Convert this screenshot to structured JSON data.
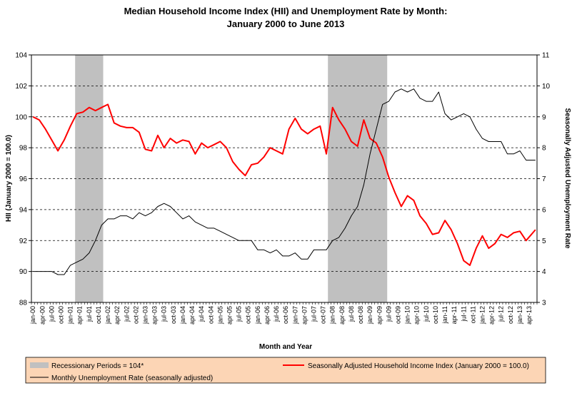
{
  "chart_data": {
    "type": "line",
    "title": "Median Household Income Index (HII) and Unemployment Rate by Month:",
    "subtitle": "January 2000 to June 2013",
    "xlabel": "Month and Year",
    "ylabel": "HII (January 2000 = 100.0)",
    "y2label": "Seasonally Adjusted Unemployment Rate",
    "ylim": [
      88,
      104
    ],
    "y2lim": [
      3,
      11
    ],
    "y_ticks": [
      "88",
      "90",
      "92",
      "94",
      "96",
      "98",
      "100",
      "102",
      "104"
    ],
    "y2_ticks": [
      "3",
      "4",
      "5",
      "6",
      "7",
      "8",
      "9",
      "10",
      "11"
    ],
    "x_start": "2000-01",
    "x_end": "2013-06",
    "x_tick_labels": [
      "jan-00",
      "apr-00",
      "jul-00",
      "oct-00",
      "jan-01",
      "apr-01",
      "jul-01",
      "oct-01",
      "jan-02",
      "apr-02",
      "jul-02",
      "oct-02",
      "jan-03",
      "apr-03",
      "jul-03",
      "oct-03",
      "jan-04",
      "apr-04",
      "jul-04",
      "oct-04",
      "jan-05",
      "apr-05",
      "jul-05",
      "oct-05",
      "jan-06",
      "apr-06",
      "jul-06",
      "oct-06",
      "jan-07",
      "apr-07",
      "jul-07",
      "oct-07",
      "jan-08",
      "apr-08",
      "jul-08",
      "oct-08",
      "jan-09",
      "apr-09",
      "jul-09",
      "oct-09",
      "jan-10",
      "apr-10",
      "jul-10",
      "oct-10",
      "jan-11",
      "apr-11",
      "jul-11",
      "oct-11",
      "jan-12",
      "apr-12",
      "jul-12",
      "oct-12",
      "jan-13",
      "apr-13"
    ],
    "grid": "horizontal dashed",
    "legend_position": "bottom",
    "recessions": [
      {
        "start": "2001-03",
        "end": "2001-11"
      },
      {
        "start": "2007-12",
        "end": "2009-06"
      }
    ],
    "series": [
      {
        "name": "Seasonally Adjusted Household Income Index (January 2000 = 100.0)",
        "axis": "left",
        "color": "#ff0000",
        "x": [
          "2000-01",
          "2000-03",
          "2000-05",
          "2000-07",
          "2000-09",
          "2000-11",
          "2001-01",
          "2001-03",
          "2001-05",
          "2001-07",
          "2001-09",
          "2001-11",
          "2002-01",
          "2002-03",
          "2002-05",
          "2002-07",
          "2002-09",
          "2002-11",
          "2003-01",
          "2003-03",
          "2003-05",
          "2003-07",
          "2003-09",
          "2003-11",
          "2004-01",
          "2004-03",
          "2004-05",
          "2004-07",
          "2004-09",
          "2004-11",
          "2005-01",
          "2005-03",
          "2005-05",
          "2005-07",
          "2005-09",
          "2005-11",
          "2006-01",
          "2006-03",
          "2006-05",
          "2006-07",
          "2006-09",
          "2006-11",
          "2007-01",
          "2007-03",
          "2007-05",
          "2007-07",
          "2007-09",
          "2007-11",
          "2008-01",
          "2008-03",
          "2008-05",
          "2008-07",
          "2008-09",
          "2008-11",
          "2009-01",
          "2009-03",
          "2009-05",
          "2009-07",
          "2009-09",
          "2009-11",
          "2010-01",
          "2010-03",
          "2010-05",
          "2010-07",
          "2010-09",
          "2010-11",
          "2011-01",
          "2011-03",
          "2011-05",
          "2011-07",
          "2011-09",
          "2011-11",
          "2012-01",
          "2012-03",
          "2012-05",
          "2012-07",
          "2012-09",
          "2012-11",
          "2013-01",
          "2013-03",
          "2013-06"
        ],
        "values": [
          100.0,
          99.8,
          99.2,
          98.5,
          97.8,
          98.5,
          99.4,
          100.2,
          100.3,
          100.6,
          100.4,
          100.6,
          100.8,
          99.6,
          99.4,
          99.3,
          99.3,
          99.0,
          97.9,
          97.8,
          98.8,
          98.0,
          98.6,
          98.3,
          98.5,
          98.4,
          97.6,
          98.3,
          98.0,
          98.2,
          98.4,
          98.0,
          97.1,
          96.6,
          96.2,
          96.9,
          97.0,
          97.4,
          98.0,
          97.8,
          97.6,
          99.2,
          99.9,
          99.2,
          98.9,
          99.2,
          99.4,
          97.6,
          100.6,
          99.8,
          99.2,
          98.4,
          98.1,
          99.8,
          98.6,
          98.3,
          97.4,
          96.1,
          95.1,
          94.2,
          94.9,
          94.6,
          93.6,
          93.1,
          92.4,
          92.5,
          93.3,
          92.7,
          91.8,
          90.7,
          90.4,
          91.5,
          92.3,
          91.5,
          91.8,
          92.4,
          92.2,
          92.5,
          92.6,
          92.0,
          92.7
        ]
      },
      {
        "name": "Monthly Unemployment Rate (seasonally adjusted)",
        "axis": "right",
        "color": "#000000",
        "x": [
          "2000-01",
          "2000-03",
          "2000-05",
          "2000-07",
          "2000-09",
          "2000-11",
          "2001-01",
          "2001-03",
          "2001-05",
          "2001-07",
          "2001-09",
          "2001-11",
          "2002-01",
          "2002-03",
          "2002-05",
          "2002-07",
          "2002-09",
          "2002-11",
          "2003-01",
          "2003-03",
          "2003-05",
          "2003-07",
          "2003-09",
          "2003-11",
          "2004-01",
          "2004-03",
          "2004-05",
          "2004-07",
          "2004-09",
          "2004-11",
          "2005-01",
          "2005-03",
          "2005-05",
          "2005-07",
          "2005-09",
          "2005-11",
          "2006-01",
          "2006-03",
          "2006-05",
          "2006-07",
          "2006-09",
          "2006-11",
          "2007-01",
          "2007-03",
          "2007-05",
          "2007-07",
          "2007-09",
          "2007-11",
          "2008-01",
          "2008-03",
          "2008-05",
          "2008-07",
          "2008-09",
          "2008-11",
          "2009-01",
          "2009-03",
          "2009-05",
          "2009-07",
          "2009-09",
          "2009-11",
          "2010-01",
          "2010-03",
          "2010-05",
          "2010-07",
          "2010-09",
          "2010-11",
          "2011-01",
          "2011-03",
          "2011-05",
          "2011-07",
          "2011-09",
          "2011-11",
          "2012-01",
          "2012-03",
          "2012-05",
          "2012-07",
          "2012-09",
          "2012-11",
          "2013-01",
          "2013-03",
          "2013-06"
        ],
        "values": [
          4.0,
          4.0,
          4.0,
          4.0,
          3.9,
          3.9,
          4.2,
          4.3,
          4.4,
          4.6,
          5.0,
          5.5,
          5.7,
          5.7,
          5.8,
          5.8,
          5.7,
          5.9,
          5.8,
          5.9,
          6.1,
          6.2,
          6.1,
          5.9,
          5.7,
          5.8,
          5.6,
          5.5,
          5.4,
          5.4,
          5.3,
          5.2,
          5.1,
          5.0,
          5.0,
          5.0,
          4.7,
          4.7,
          4.6,
          4.7,
          4.5,
          4.5,
          4.6,
          4.4,
          4.4,
          4.7,
          4.7,
          4.7,
          5.0,
          5.1,
          5.4,
          5.8,
          6.1,
          6.8,
          7.8,
          8.6,
          9.4,
          9.5,
          9.8,
          9.9,
          9.8,
          9.9,
          9.6,
          9.5,
          9.5,
          9.8,
          9.1,
          8.9,
          9.0,
          9.1,
          9.0,
          8.6,
          8.3,
          8.2,
          8.2,
          8.2,
          7.8,
          7.8,
          7.9,
          7.6,
          7.6
        ]
      }
    ]
  },
  "legend": {
    "recession_label": "Recessionary Periods = 104*",
    "recession_color": "#c0c0c0",
    "income_label": "Seasonally Adjusted Household Income Index (January 2000 = 100.0)",
    "unemployment_label": "Monthly Unemployment Rate (seasonally adjusted)",
    "background": "#fcd5b5"
  }
}
